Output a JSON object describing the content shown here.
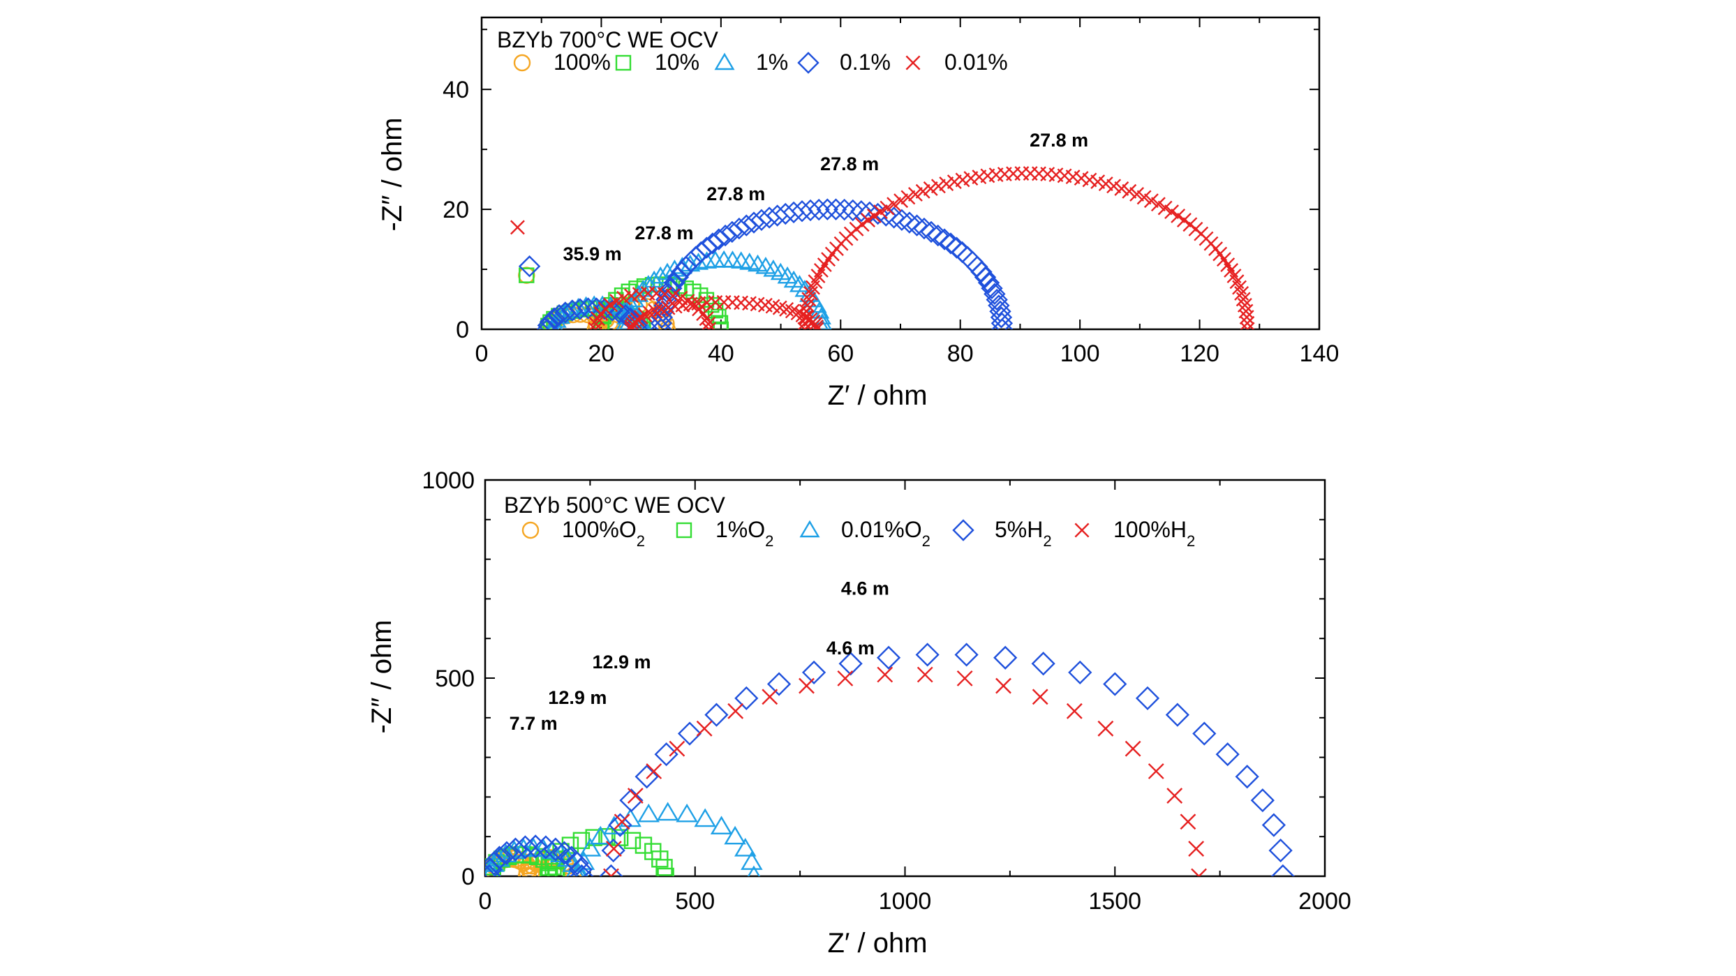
{
  "chart_data": [
    {
      "type": "scatter",
      "title": "BZYb 700°C WE OCV",
      "xlabel": "Z′ / ohm",
      "ylabel": "-Z″ / ohm",
      "xlim": [
        0,
        140
      ],
      "ylim": [
        0,
        52
      ],
      "xticks": [
        0,
        20,
        40,
        60,
        80,
        100,
        120,
        140
      ],
      "yticks": [
        0,
        20,
        40
      ],
      "grid": false,
      "legend": "top-left",
      "series": [
        {
          "name": "100%",
          "marker": "circle",
          "color": "#f5a623",
          "arcs": [
            {
              "x0": 11,
              "x1": 22,
              "peak": 2.5
            },
            {
              "x0": 19,
              "x1": 31,
              "peak": 4.2
            }
          ],
          "x": [
            7.5
          ],
          "y": [
            9
          ]
        },
        {
          "name": "10%",
          "marker": "square",
          "color": "#33dd33",
          "arcs": [
            {
              "x0": 11,
              "x1": 27,
              "peak": 3.5
            },
            {
              "x0": 20,
              "x1": 40,
              "peak": 7.5
            }
          ],
          "x": [
            7.5
          ],
          "y": [
            9
          ]
        },
        {
          "name": "1%",
          "marker": "triangle",
          "color": "#1ea0e6",
          "arcs": [
            {
              "x0": 12,
              "x1": 27,
              "peak": 4
            },
            {
              "x0": 24,
              "x1": 57,
              "peak": 11.5
            }
          ],
          "x": [],
          "y": []
        },
        {
          "name": "0.1%",
          "marker": "diamond",
          "color": "#1e50dc",
          "arcs": [
            {
              "x0": 11,
              "x1": 26,
              "peak": 3.5
            },
            {
              "x0": 30,
              "x1": 87,
              "peak": 20
            }
          ],
          "x": [
            8
          ],
          "y": [
            10.5
          ]
        },
        {
          "name": "0.01%",
          "marker": "cross",
          "color": "#e62020",
          "arcs": [
            {
              "x0": 19,
              "x1": 38,
              "peak": 6
            },
            {
              "x0": 25,
              "x1": 56,
              "peak": 4.5
            },
            {
              "x0": 54,
              "x1": 128,
              "peak": 26
            }
          ],
          "x": [
            6
          ],
          "y": [
            17
          ]
        }
      ],
      "annotations": [
        {
          "text": "35.9 m",
          "x": 18.5,
          "y": 11.5
        },
        {
          "text": "27.8 m",
          "x": 30.5,
          "y": 15
        },
        {
          "text": "27.8 m",
          "x": 42.5,
          "y": 21.5
        },
        {
          "text": "27.8 m",
          "x": 61.5,
          "y": 26.5
        },
        {
          "text": "27.8 m",
          "x": 96.5,
          "y": 30.5
        }
      ]
    },
    {
      "type": "scatter",
      "title": "BZYb 500°C WE OCV",
      "xlabel": "Z′ / ohm",
      "ylabel": "-Z″ / ohm",
      "xlim": [
        0,
        2000
      ],
      "ylim": [
        0,
        1000
      ],
      "xticks": [
        0,
        500,
        1000,
        1500,
        2000
      ],
      "yticks": [
        0,
        500,
        1000
      ],
      "grid": false,
      "legend": "top-left",
      "series": [
        {
          "name": "100%O2",
          "marker": "circle",
          "color": "#f5a623",
          "arcs": [
            {
              "x0": 10,
              "x1": 110,
              "peak": 45
            },
            {
              "x0": 100,
              "x1": 210,
              "peak": 45
            }
          ],
          "x": [],
          "y": []
        },
        {
          "name": "1%O2",
          "marker": "square",
          "color": "#33dd33",
          "arcs": [
            {
              "x0": 10,
              "x1": 170,
              "peak": 55
            },
            {
              "x0": 150,
              "x1": 430,
              "peak": 100
            }
          ],
          "x": [],
          "y": []
        },
        {
          "name": "0.01%O2",
          "marker": "triangle",
          "color": "#1ea0e6",
          "arcs": [
            {
              "x0": 10,
              "x1": 220,
              "peak": 70
            },
            {
              "x0": 230,
              "x1": 640,
              "peak": 160
            }
          ],
          "x": [],
          "y": []
        },
        {
          "name": "5%H2",
          "marker": "diamond",
          "color": "#1e50dc",
          "arcs": [
            {
              "x0": 10,
              "x1": 230,
              "peak": 75
            },
            {
              "x0": 300,
              "x1": 1900,
              "peak": 560
            }
          ],
          "x": [],
          "y": []
        },
        {
          "name": "100%H2",
          "marker": "cross",
          "color": "#e62020",
          "arcs": [
            {
              "x0": 300,
              "x1": 1700,
              "peak": 510
            }
          ],
          "x": [],
          "y": []
        }
      ],
      "annotations": [
        {
          "text": "7.7 m",
          "x": 115,
          "y": 370
        },
        {
          "text": "12.9 m",
          "x": 220,
          "y": 435
        },
        {
          "text": "12.9 m",
          "x": 325,
          "y": 525
        },
        {
          "text": "4.6 m",
          "x": 870,
          "y": 560
        },
        {
          "text": "4.6 m",
          "x": 905,
          "y": 710
        }
      ]
    }
  ]
}
